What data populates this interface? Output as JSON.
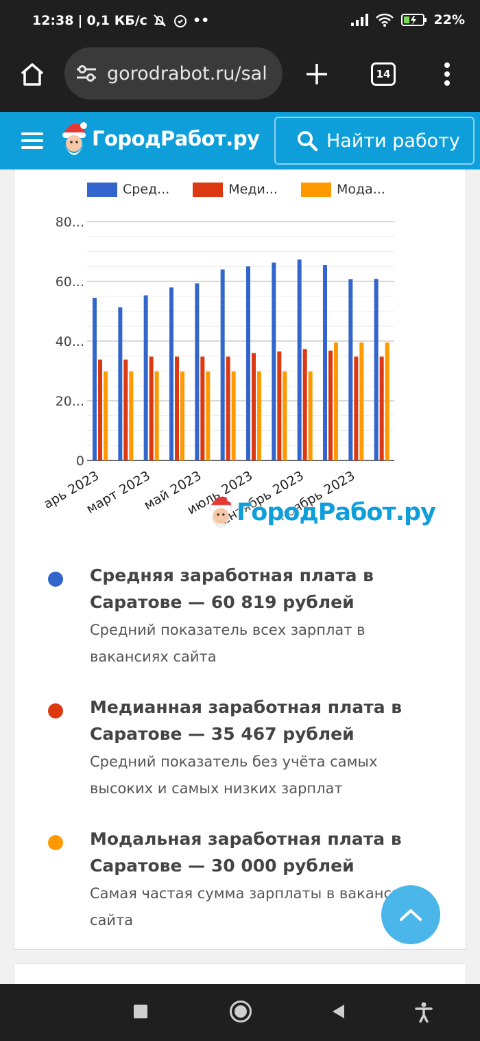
{
  "status_bar": {
    "time": "12:38",
    "speed": "0,1 КБ/с",
    "battery": "22%",
    "icons": [
      "alarm-off-icon",
      "alarm-icon",
      "signal-icon",
      "wifi-icon",
      "battery-icon"
    ]
  },
  "browser": {
    "url": "gorodrabot.ru/sal",
    "tabs_count": "14",
    "icons": [
      "home-icon",
      "site-settings-icon",
      "new-tab-icon",
      "tabs-icon",
      "more-menu-icon"
    ]
  },
  "site": {
    "logo": "ГородРабот.ру",
    "find_job": "Найти работу",
    "accent": "#0e9fdb"
  },
  "chart_data": {
    "type": "bar",
    "legend": [
      "Сред...",
      "Меди...",
      "Мода..."
    ],
    "legend_position": "top",
    "series": [
      {
        "name": "Сред...",
        "color": "#3366cc",
        "values": [
          54500,
          51300,
          55300,
          58000,
          59300,
          64000,
          65000,
          66300,
          67300,
          65500,
          60700,
          60800
        ]
      },
      {
        "name": "Меди...",
        "color": "#dc3912",
        "values": [
          33800,
          33800,
          34800,
          34800,
          34800,
          34800,
          36000,
          36500,
          37300,
          36800,
          34800,
          34800
        ]
      },
      {
        "name": "Мода...",
        "color": "#ff9900",
        "values": [
          29800,
          29800,
          29800,
          29800,
          29800,
          29800,
          29800,
          29800,
          29800,
          39500,
          39500,
          39500
        ]
      }
    ],
    "ylim": [
      0,
      80000
    ],
    "y_ticks": [
      0,
      20000,
      40000,
      60000,
      80000
    ],
    "y_tick_labels": [
      "0",
      "20...",
      "40...",
      "60...",
      "80..."
    ],
    "x_tick_labels": [
      "арь 2023",
      "март 2023",
      "май 2023",
      "июль 2023",
      "ентябрь 2023",
      "ноябрь 2023"
    ],
    "grid": true,
    "watermark": "ГородРабот.ру"
  },
  "stats": [
    {
      "title": "Средняя заработная плата в Саратове — 60 819 рублей",
      "desc": "Средний показатель всех зарплат в вакансиях сайта",
      "color": "#3366cc"
    },
    {
      "title": "Медианная заработная плата в Саратове — 35 467 рублей",
      "desc": "Средний показатель без учёта самых высоких и самых низких зарплат",
      "color": "#dc3912"
    },
    {
      "title": "Модальная заработная плата в Саратове — 30 000 рублей",
      "desc": "Самая частая сумма зарплаты в вакансиях сайта",
      "color": "#ff9900"
    }
  ],
  "nav_icons": [
    "recents-icon",
    "home-circle-icon",
    "back-icon",
    "accessibility-icon"
  ]
}
